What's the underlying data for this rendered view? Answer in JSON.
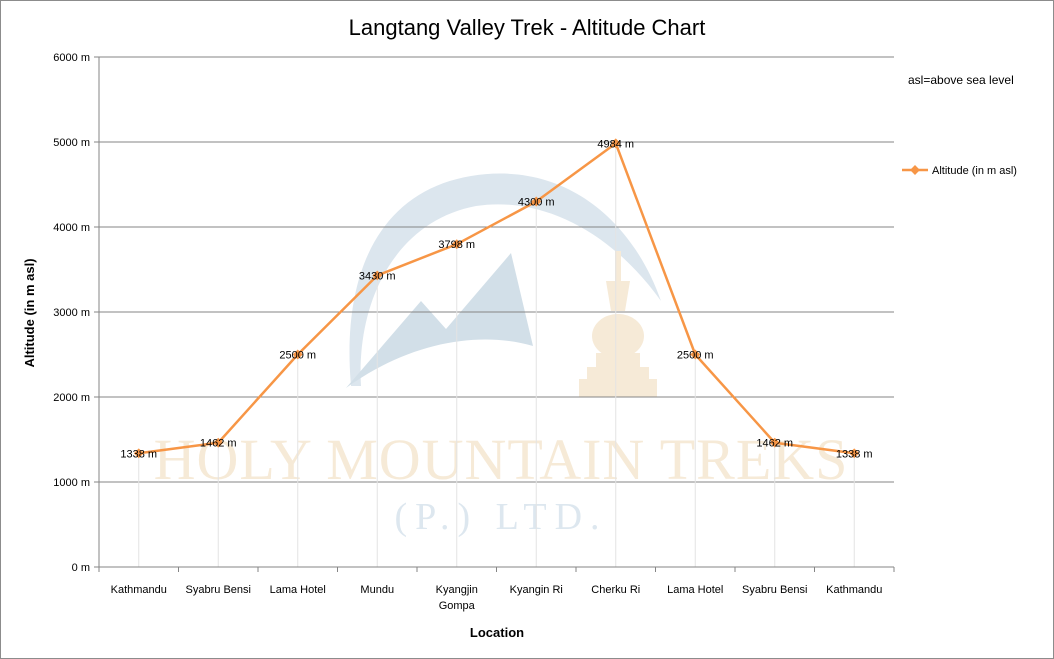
{
  "chart_data": {
    "type": "line",
    "title": "Langtang Valley Trek - Altitude Chart",
    "xlabel": "Location",
    "ylabel": "Altitude (in m asl)",
    "categories": [
      [
        "Kathmandu"
      ],
      [
        "Syabru Bensi"
      ],
      [
        "Lama Hotel"
      ],
      [
        "Mundu"
      ],
      [
        "Kyangjin",
        "Gompa"
      ],
      [
        "Kyangin Ri"
      ],
      [
        "Cherku Ri"
      ],
      [
        "Lama Hotel"
      ],
      [
        "Syabru Bensi"
      ],
      [
        "Kathmandu"
      ]
    ],
    "ylim": [
      0,
      6000
    ],
    "yticks": [
      0,
      1000,
      2000,
      3000,
      4000,
      5000,
      6000
    ],
    "ytick_labels": [
      "0 m",
      "1000 m",
      "2000 m",
      "3000 m",
      "4000 m",
      "5000 m",
      "6000 m"
    ],
    "grid": true,
    "legend_position": "right",
    "series": [
      {
        "name": "Altitude (in  m asl)",
        "color": "#f79646",
        "values": [
          1338,
          1462,
          2500,
          3430,
          3798,
          4300,
          4984,
          2500,
          1462,
          1338
        ],
        "data_labels": [
          "1338 m",
          "1462 m",
          "2500 m",
          "3430 m",
          "3798 m",
          "4300 m",
          "4984 m",
          "2500 m",
          "1462 m",
          "1338 m"
        ]
      }
    ],
    "annotation": "asl=above sea level"
  },
  "watermark": {
    "line1": "HOLY MOUNTAIN TREKS",
    "line2": "(P.) LTD.",
    "logo_icon": "mountain-stupa-logo"
  }
}
